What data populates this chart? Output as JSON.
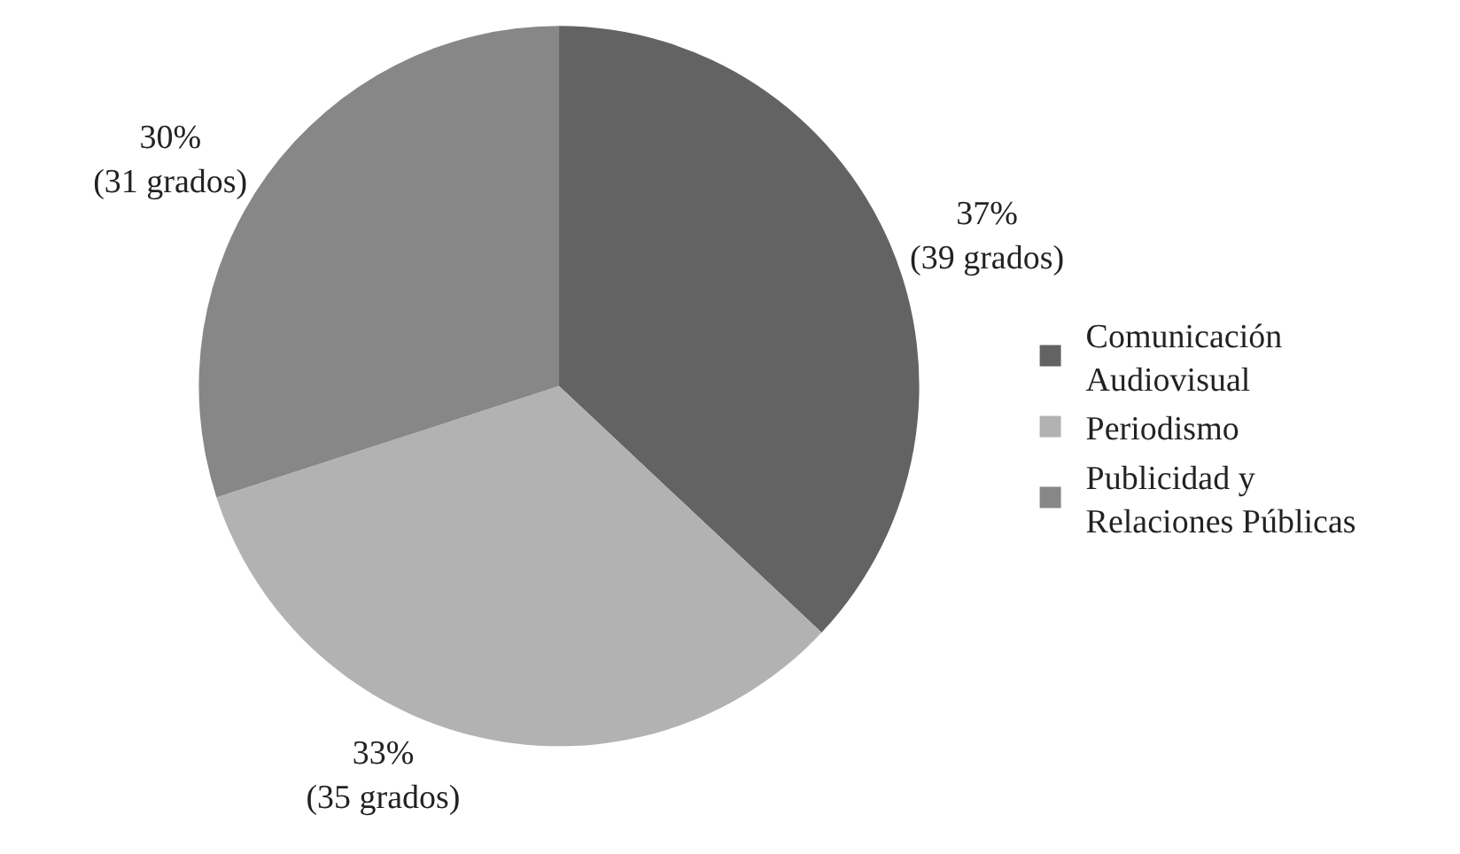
{
  "chart_data": {
    "type": "pie",
    "categories": [
      "Comunicación Audiovisual",
      "Periodismo",
      "Publicidad y Relaciones Públicas"
    ],
    "values": [
      37,
      33,
      30
    ],
    "value_labels": [
      "37%\n(39 grados)",
      "33%\n(35 grados)",
      "30%\n(31 grados)"
    ],
    "colors": [
      "#636363",
      "#b2b2b2",
      "#878787"
    ],
    "legend": "right"
  }
}
